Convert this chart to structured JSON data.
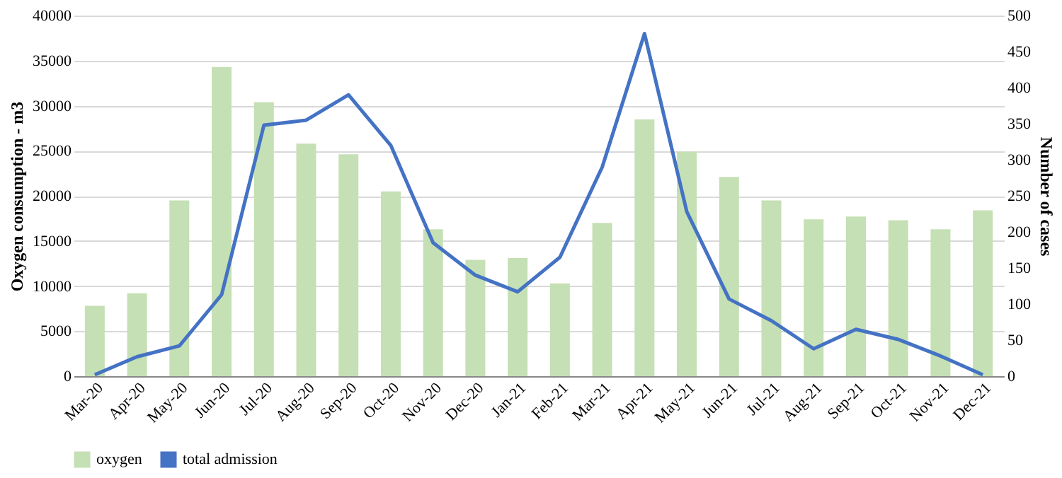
{
  "chart_data": {
    "type": "bar",
    "ylabel": "Oxygen consumption - m3",
    "y2label": "Number of cases",
    "categories": [
      "Mar-20",
      "Apr-20",
      "May-20",
      "Jun-20",
      "Jul-20",
      "Aug-20",
      "Sep-20",
      "Oct-20",
      "Nov-20",
      "Dec-20",
      "Jan-21",
      "Feb-21",
      "Mar-21",
      "Apr-21",
      "May-21",
      "Jun-21",
      "Jul-21",
      "Aug-21",
      "Sep-21",
      "Oct-21",
      "Nov-21",
      "Dec-21"
    ],
    "series": [
      {
        "name": "oxygen",
        "color": "#c5e0b4",
        "values": [
          7800,
          9200,
          19500,
          34300,
          30400,
          25800,
          24600,
          20500,
          16300,
          12900,
          13100,
          10300,
          17000,
          28500,
          24900,
          22100,
          19500,
          17400,
          17700,
          17300,
          16300,
          18400
        ]
      },
      {
        "name": "total admission",
        "type": "line",
        "axis": "y2",
        "color": "#4472c4",
        "values": [
          2,
          27,
          42,
          113,
          348,
          355,
          390,
          320,
          185,
          140,
          117,
          165,
          290,
          475,
          228,
          107,
          77,
          38,
          65,
          51,
          28,
          2
        ]
      }
    ],
    "ylim": [
      0,
      40000
    ],
    "yticks": [
      0,
      5000,
      10000,
      15000,
      20000,
      25000,
      30000,
      35000,
      40000
    ],
    "y2lim": [
      0,
      500
    ],
    "y2ticks": [
      0,
      50,
      100,
      150,
      200,
      250,
      300,
      350,
      400,
      450,
      500
    ],
    "grid": "y",
    "legend": "bottom",
    "marker": "none",
    "line_style": "solid"
  }
}
